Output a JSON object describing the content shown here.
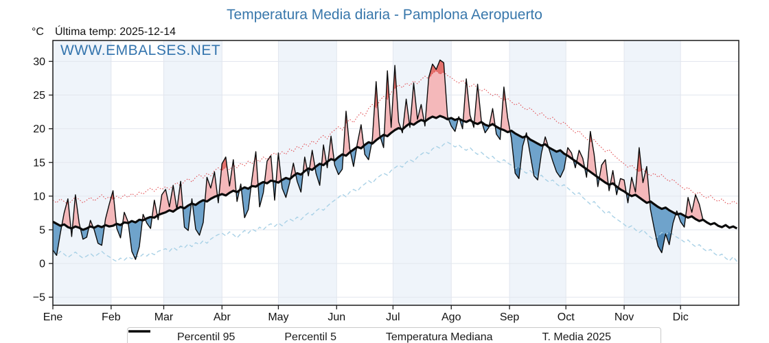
{
  "title": "Temperatura Media diaria - Pamplona Aeropuerto",
  "subtitle": {
    "unit": "°C",
    "last_temp": "Última temp: 2025-12-14"
  },
  "watermark": "WWW.EMBALSES.NET",
  "colors": {
    "title_blue": "#3877ab",
    "band_tint": "#eff4fa",
    "gridline": "#e2e6ee",
    "fill_above": "#f4b8ba",
    "fill_below": "#6fa3cb",
    "fill_above_p95": "#e4716c",
    "fill_below_p5": "#4d86b4",
    "p95_line": "#e14b50",
    "p5_line": "#a9d1e6",
    "median_line": "#0a0a0a",
    "t2025_line": "#0a0a0a"
  },
  "chart_data": {
    "type": "line",
    "title": "Temperatura Media diaria - Pamplona Aeropuerto",
    "x_unit": "day_of_year",
    "x_step_days": 2,
    "x_months": [
      "Ene",
      "Feb",
      "Mar",
      "Abr",
      "May",
      "Jun",
      "Jul",
      "Ago",
      "Sep",
      "Oct",
      "Nov",
      "Dic"
    ],
    "month_start_days": [
      0,
      31,
      59,
      90,
      120,
      151,
      181,
      212,
      243,
      273,
      304,
      334
    ],
    "days_in_year": 365,
    "ylim": [
      -6.2,
      33.1
    ],
    "yticks": [
      30,
      25,
      20,
      15,
      10,
      5,
      0,
      -5
    ],
    "ytick_labels": [
      "30",
      "25",
      "20",
      "15",
      "10",
      "5",
      "0",
      "−5"
    ],
    "grid": true,
    "legend_position": "bottom-center",
    "series": [
      {
        "key": "p95",
        "name": "Percentil 95",
        "color": "#e14b50",
        "style": "dotted",
        "width": 1.1,
        "values": [
          9.4,
          9.0,
          9.6,
          9.2,
          8.8,
          9.3,
          9.9,
          9.5,
          9.0,
          9.4,
          9.8,
          9.3,
          9.7,
          10.2,
          9.6,
          9.9,
          9.5,
          10.0,
          9.6,
          10.2,
          9.8,
          10.4,
          10.0,
          10.6,
          10.3,
          10.8,
          11.2,
          10.7,
          11.3,
          11.0,
          11.4,
          11.0,
          11.6,
          12.0,
          11.5,
          12.2,
          12.6,
          12.1,
          12.8,
          13.2,
          12.7,
          13.4,
          13.0,
          13.8,
          14.2,
          13.8,
          14.3,
          13.9,
          14.6,
          14.2,
          14.9,
          14.5,
          15.2,
          14.8,
          15.5,
          15.1,
          15.8,
          15.4,
          16.1,
          16.4,
          16.0,
          16.6,
          16.2,
          17.0,
          16.6,
          17.4,
          17.0,
          17.8,
          17.4,
          18.2,
          17.8,
          18.6,
          19.0,
          18.5,
          19.4,
          19.8,
          20.3,
          19.8,
          20.8,
          21.4,
          20.9,
          21.8,
          22.4,
          21.9,
          23.0,
          23.6,
          23.1,
          24.2,
          24.8,
          24.3,
          25.4,
          26.0,
          26.5,
          26.1,
          26.8,
          26.4,
          27.1,
          26.7,
          27.3,
          27.8,
          27.4,
          28.2,
          28.6,
          28.1,
          28.4,
          27.9,
          27.6,
          27.1,
          26.8,
          27.2,
          26.6,
          26.2,
          26.6,
          26.0,
          25.6,
          25.9,
          25.3,
          24.9,
          25.2,
          24.6,
          24.2,
          24.5,
          24.0,
          23.5,
          23.8,
          23.2,
          22.8,
          23.1,
          22.5,
          22.0,
          22.4,
          21.8,
          21.4,
          21.7,
          21.1,
          20.7,
          21.0,
          20.4,
          19.9,
          19.4,
          19.7,
          19.0,
          18.5,
          18.0,
          18.4,
          17.7,
          17.2,
          16.6,
          16.9,
          16.2,
          15.7,
          15.2,
          14.8,
          14.3,
          14.6,
          14.0,
          13.6,
          14.0,
          13.4,
          13.0,
          13.4,
          12.8,
          13.2,
          12.6,
          12.2,
          12.5,
          11.9,
          11.5,
          11.0,
          11.3,
          10.7,
          10.3,
          10.6,
          10.0,
          9.7,
          10.1,
          9.5,
          9.2,
          9.6,
          9.0,
          8.8,
          9.3,
          8.9
        ]
      },
      {
        "key": "p5",
        "name": "Percentil 5",
        "color": "#a9d1e6",
        "style": "dashed",
        "width": 1.4,
        "values": [
          1.6,
          1.2,
          1.8,
          1.4,
          0.9,
          1.3,
          1.7,
          1.2,
          0.8,
          1.1,
          1.5,
          1.0,
          1.4,
          1.8,
          1.3,
          1.0,
          0.6,
          0.3,
          0.8,
          0.5,
          1.0,
          0.7,
          1.2,
          0.9,
          1.4,
          1.1,
          1.6,
          1.3,
          1.8,
          2.0,
          2.2,
          1.8,
          2.4,
          2.0,
          2.6,
          2.3,
          2.9,
          2.5,
          3.1,
          2.8,
          3.4,
          3.0,
          3.6,
          4.0,
          4.3,
          4.5,
          4.1,
          4.7,
          4.3,
          3.8,
          4.4,
          4.9,
          4.5,
          5.1,
          4.8,
          5.4,
          5.0,
          5.6,
          5.9,
          5.5,
          6.0,
          5.6,
          6.2,
          6.6,
          6.3,
          6.9,
          6.5,
          7.1,
          7.5,
          7.2,
          7.8,
          8.2,
          7.9,
          8.5,
          9.0,
          9.4,
          9.8,
          10.3,
          9.9,
          10.6,
          11.0,
          10.7,
          11.4,
          11.8,
          12.3,
          11.9,
          12.6,
          13.0,
          13.4,
          13.1,
          13.8,
          14.2,
          14.6,
          14.3,
          15.0,
          15.4,
          15.1,
          15.8,
          16.2,
          16.6,
          16.3,
          17.0,
          17.4,
          17.1,
          17.7,
          18.0,
          17.7,
          17.3,
          17.6,
          17.1,
          16.8,
          17.2,
          16.6,
          16.2,
          16.5,
          16.0,
          15.6,
          15.9,
          15.3,
          15.0,
          15.4,
          14.9,
          14.6,
          14.1,
          14.4,
          13.8,
          13.4,
          13.8,
          13.2,
          12.8,
          13.1,
          12.5,
          12.1,
          12.4,
          11.8,
          11.4,
          11.7,
          11.2,
          10.7,
          10.2,
          10.5,
          9.8,
          9.3,
          8.8,
          9.2,
          8.5,
          8.0,
          7.4,
          7.7,
          7.0,
          6.6,
          6.2,
          5.8,
          5.3,
          5.6,
          5.0,
          4.6,
          5.0,
          4.4,
          3.9,
          3.5,
          4.0,
          4.6,
          4.2,
          4.7,
          4.3,
          3.9,
          3.6,
          3.2,
          3.5,
          2.9,
          2.5,
          2.8,
          2.2,
          1.8,
          2.1,
          1.5,
          1.1,
          1.4,
          0.8,
          0.4,
          1.0,
          0.3
        ]
      },
      {
        "key": "median",
        "name": "Temperatura Mediana",
        "color": "#0a0a0a",
        "style": "solid-thick",
        "width": 3.2,
        "values": [
          6.2,
          5.9,
          5.6,
          5.8,
          5.4,
          5.2,
          5.5,
          5.3,
          5.0,
          5.2,
          5.5,
          5.3,
          5.6,
          5.4,
          5.7,
          5.5,
          5.6,
          5.9,
          5.7,
          6.1,
          6.0,
          6.3,
          6.1,
          6.5,
          6.4,
          6.7,
          6.9,
          6.8,
          7.2,
          7.4,
          7.6,
          7.9,
          7.7,
          8.1,
          8.4,
          8.2,
          8.6,
          8.9,
          8.7,
          9.1,
          9.4,
          9.2,
          9.6,
          9.9,
          10.1,
          10.3,
          10.1,
          10.5,
          10.8,
          10.6,
          11.0,
          11.3,
          11.1,
          11.5,
          11.4,
          11.8,
          12.1,
          11.9,
          12.3,
          12.2,
          12.0,
          12.4,
          12.7,
          12.5,
          13.0,
          13.4,
          13.2,
          13.7,
          14.1,
          13.9,
          14.4,
          14.8,
          14.6,
          15.1,
          15.5,
          15.3,
          15.8,
          16.2,
          16.0,
          16.5,
          16.9,
          17.3,
          17.1,
          17.6,
          18.0,
          17.8,
          18.3,
          18.7,
          19.1,
          18.9,
          19.4,
          19.8,
          20.1,
          19.9,
          20.4,
          20.8,
          20.6,
          21.0,
          21.3,
          21.1,
          21.5,
          21.8,
          21.6,
          21.9,
          21.7,
          21.4,
          21.6,
          21.3,
          21.5,
          21.2,
          21.0,
          21.3,
          20.9,
          20.7,
          21.0,
          20.6,
          20.4,
          20.7,
          20.3,
          20.0,
          19.8,
          19.5,
          19.7,
          19.3,
          19.0,
          18.7,
          18.9,
          18.4,
          18.1,
          17.8,
          17.5,
          17.7,
          17.2,
          16.9,
          16.6,
          16.8,
          16.3,
          16.0,
          15.6,
          15.2,
          14.8,
          14.4,
          14.0,
          13.6,
          13.2,
          12.8,
          12.4,
          12.0,
          11.7,
          11.9,
          11.4,
          11.0,
          10.7,
          10.3,
          10.0,
          10.2,
          9.8,
          9.4,
          9.0,
          9.2,
          8.8,
          8.4,
          8.1,
          8.3,
          7.9,
          7.6,
          7.3,
          7.4,
          7.1,
          6.8,
          7.0,
          6.6,
          6.3,
          6.5,
          6.1,
          5.8,
          6.0,
          5.6,
          5.4,
          5.7,
          5.3,
          5.5,
          5.2
        ]
      },
      {
        "key": "t2025",
        "name": "T. Media 2025",
        "color": "#0a0a0a",
        "style": "solid-thin",
        "width": 1.4,
        "values": [
          2.0,
          1.2,
          4.5,
          7.5,
          9.6,
          4.0,
          10.2,
          6.0,
          3.6,
          3.9,
          6.4,
          5.0,
          3.0,
          2.7,
          6.6,
          8.8,
          10.8,
          5.2,
          3.8,
          7.6,
          6.2,
          1.8,
          0.6,
          2.5,
          7.3,
          6.0,
          5.2,
          9.4,
          6.5,
          10.2,
          11.0,
          8.4,
          11.6,
          8.0,
          12.2,
          5.4,
          4.9,
          9.6,
          5.1,
          4.2,
          6.1,
          12.8,
          11.2,
          13.6,
          9.0,
          14.8,
          15.8,
          11.5,
          15.4,
          9.2,
          11.8,
          6.8,
          8.0,
          12.6,
          16.6,
          8.4,
          10.5,
          15.2,
          16.0,
          9.4,
          16.4,
          11.2,
          9.8,
          12.0,
          14.9,
          12.2,
          10.6,
          15.8,
          13.0,
          16.8,
          13.4,
          11.6,
          17.6,
          14.2,
          18.9,
          14.6,
          13.2,
          14.0,
          22.6,
          17.0,
          14.4,
          17.8,
          20.6,
          16.2,
          15.4,
          18.4,
          27.0,
          19.0,
          17.2,
          28.6,
          20.2,
          29.4,
          21.0,
          19.4,
          24.4,
          20.2,
          26.8,
          21.4,
          23.6,
          20.4,
          27.6,
          29.6,
          28.8,
          30.2,
          29.8,
          21.8,
          20.4,
          19.6,
          21.8,
          20.0,
          27.4,
          22.0,
          20.2,
          26.6,
          21.2,
          19.4,
          20.2,
          23.0,
          19.2,
          18.4,
          26.2,
          21.6,
          18.6,
          13.4,
          12.6,
          17.4,
          19.4,
          16.2,
          13.0,
          12.4,
          16.4,
          18.8,
          17.0,
          15.2,
          13.6,
          12.8,
          14.0,
          17.2,
          16.4,
          14.2,
          16.8,
          15.6,
          12.8,
          19.6,
          16.2,
          11.4,
          14.6,
          15.4,
          10.8,
          13.8,
          10.2,
          12.6,
          12.4,
          9.0,
          12.8,
          10.6,
          17.2,
          12.0,
          14.4,
          8.0,
          5.2,
          2.6,
          1.6,
          4.4,
          2.8,
          6.0,
          7.8,
          6.2,
          5.4,
          9.8,
          7.6,
          10.2,
          8.8,
          6.4
        ]
      }
    ],
    "fills": {
      "above_median": "#f4b8ba",
      "below_median": "#6fa3cb",
      "above_p95": "#e4716c",
      "below_p5": "#4d86b4"
    }
  },
  "legend": {
    "items": [
      "Percentil 95",
      "Percentil 5",
      "Temperatura Mediana",
      "T. Media 2025"
    ]
  }
}
